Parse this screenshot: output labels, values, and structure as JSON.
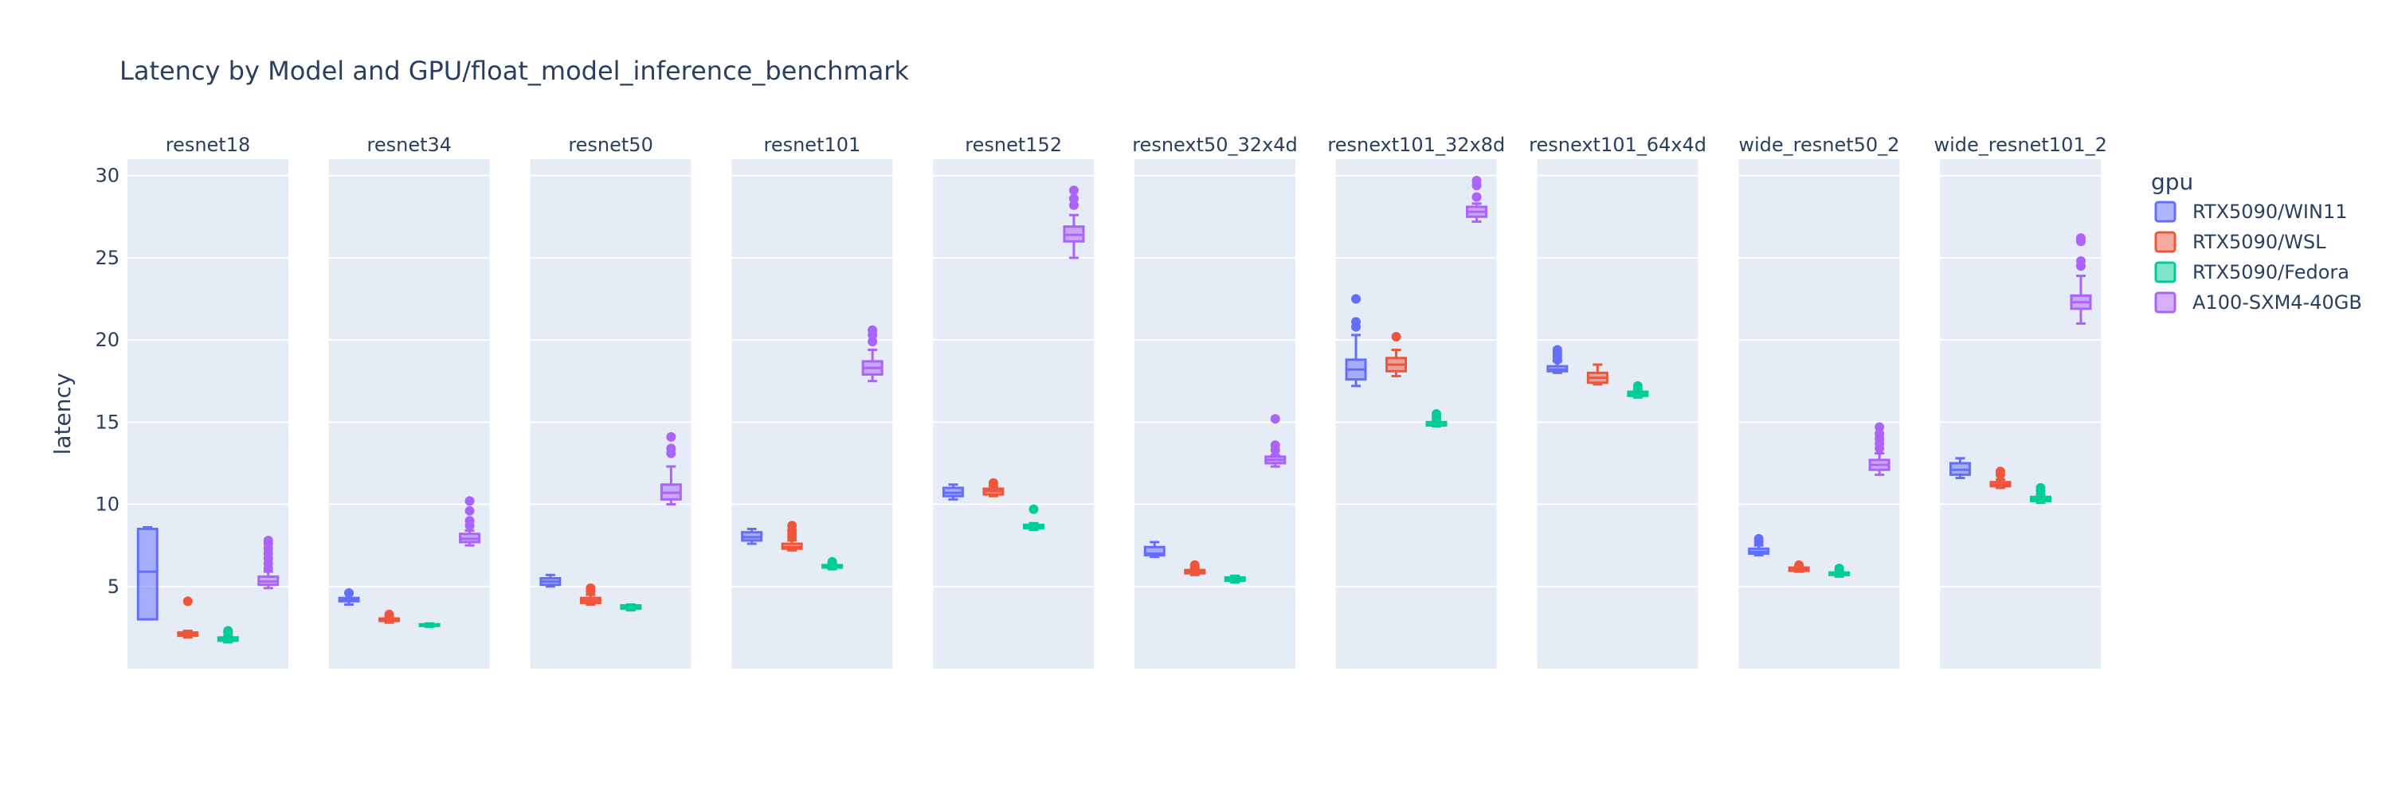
{
  "chart_data": {
    "type": "box",
    "title": "Latency by Model and GPU/float_model_inference_benchmark",
    "ylabel": "latency",
    "ylim": [
      0,
      31
    ],
    "yticks": [
      5,
      10,
      15,
      20,
      25,
      30
    ],
    "grid": true,
    "legend": {
      "title": "gpu",
      "position": "right"
    },
    "categories": [
      "resnet18",
      "resnet34",
      "resnet50",
      "resnet101",
      "resnet152",
      "resnext50_32x4d",
      "resnext101_32x8d",
      "resnext101_64x4d",
      "wide_resnet50_2",
      "wide_resnet101_2"
    ],
    "series": [
      {
        "name": "RTX5090/WIN11",
        "color": "#636efa",
        "boxes": [
          {
            "q1": 3.0,
            "median": 5.9,
            "q3": 8.5,
            "lower": 3.0,
            "upper": 8.6,
            "outliers": []
          },
          {
            "q1": 4.1,
            "median": 4.2,
            "q3": 4.3,
            "lower": 3.9,
            "upper": 4.6,
            "outliers": [
              4.6
            ]
          },
          {
            "q1": 5.1,
            "median": 5.3,
            "q3": 5.5,
            "lower": 5.0,
            "upper": 5.7,
            "outliers": []
          },
          {
            "q1": 7.8,
            "median": 8.0,
            "q3": 8.3,
            "lower": 7.6,
            "upper": 8.5,
            "outliers": []
          },
          {
            "q1": 10.5,
            "median": 10.7,
            "q3": 11.0,
            "lower": 10.3,
            "upper": 11.2,
            "outliers": []
          },
          {
            "q1": 6.9,
            "median": 7.0,
            "q3": 7.4,
            "lower": 6.8,
            "upper": 7.7,
            "outliers": []
          },
          {
            "q1": 17.6,
            "median": 18.2,
            "q3": 18.8,
            "lower": 17.2,
            "upper": 20.3,
            "outliers": [
              20.8,
              21.1,
              22.5
            ]
          },
          {
            "q1": 18.1,
            "median": 18.2,
            "q3": 18.4,
            "lower": 18.0,
            "upper": 18.7,
            "outliers": [
              18.8,
              19.0,
              19.2,
              19.4
            ]
          },
          {
            "q1": 7.0,
            "median": 7.1,
            "q3": 7.3,
            "lower": 6.9,
            "upper": 7.5,
            "outliers": [
              7.7,
              7.9
            ]
          },
          {
            "q1": 11.8,
            "median": 12.1,
            "q3": 12.5,
            "lower": 11.6,
            "upper": 12.8,
            "outliers": []
          }
        ]
      },
      {
        "name": "RTX5090/WSL",
        "color": "#ef553b",
        "boxes": [
          {
            "q1": 2.0,
            "median": 2.1,
            "q3": 2.2,
            "lower": 1.9,
            "upper": 2.3,
            "outliers": [
              4.1
            ]
          },
          {
            "q1": 2.9,
            "median": 3.0,
            "q3": 3.05,
            "lower": 2.8,
            "upper": 3.2,
            "outliers": [
              3.3
            ]
          },
          {
            "q1": 4.0,
            "median": 4.15,
            "q3": 4.3,
            "lower": 3.9,
            "upper": 4.5,
            "outliers": [
              4.7,
              4.9
            ]
          },
          {
            "q1": 7.3,
            "median": 7.4,
            "q3": 7.6,
            "lower": 7.2,
            "upper": 7.8,
            "outliers": [
              8.0,
              8.2,
              8.4,
              8.7
            ]
          },
          {
            "q1": 10.6,
            "median": 10.8,
            "q3": 10.95,
            "lower": 10.5,
            "upper": 11.1,
            "outliers": [
              11.3
            ]
          },
          {
            "q1": 5.8,
            "median": 5.9,
            "q3": 6.0,
            "lower": 5.7,
            "upper": 6.1,
            "outliers": [
              6.2,
              6.3
            ]
          },
          {
            "q1": 18.1,
            "median": 18.5,
            "q3": 18.9,
            "lower": 17.8,
            "upper": 19.4,
            "outliers": [
              20.2
            ]
          },
          {
            "q1": 17.4,
            "median": 17.7,
            "q3": 18.0,
            "lower": 17.3,
            "upper": 18.5,
            "outliers": []
          },
          {
            "q1": 5.95,
            "median": 6.05,
            "q3": 6.15,
            "lower": 5.9,
            "upper": 6.2,
            "outliers": [
              6.3
            ]
          },
          {
            "q1": 11.1,
            "median": 11.2,
            "q3": 11.35,
            "lower": 11.0,
            "upper": 11.5,
            "outliers": [
              11.8,
              12.0
            ]
          }
        ]
      },
      {
        "name": "RTX5090/Fedora",
        "color": "#00cc96",
        "boxes": [
          {
            "q1": 1.7,
            "median": 1.8,
            "q3": 1.9,
            "lower": 1.6,
            "upper": 2.0,
            "outliers": [
              2.2,
              2.3
            ]
          },
          {
            "q1": 2.6,
            "median": 2.65,
            "q3": 2.7,
            "lower": 2.55,
            "upper": 2.75,
            "outliers": []
          },
          {
            "q1": 3.65,
            "median": 3.75,
            "q3": 3.85,
            "lower": 3.55,
            "upper": 3.9,
            "outliers": []
          },
          {
            "q1": 6.15,
            "median": 6.2,
            "q3": 6.3,
            "lower": 6.05,
            "upper": 6.4,
            "outliers": [
              6.5
            ]
          },
          {
            "q1": 8.55,
            "median": 8.65,
            "q3": 8.75,
            "lower": 8.45,
            "upper": 8.85,
            "outliers": [
              9.7
            ]
          },
          {
            "q1": 5.35,
            "median": 5.45,
            "q3": 5.55,
            "lower": 5.25,
            "upper": 5.65,
            "outliers": []
          },
          {
            "q1": 14.8,
            "median": 14.9,
            "q3": 15.0,
            "lower": 14.75,
            "upper": 15.1,
            "outliers": [
              15.3,
              15.5
            ]
          },
          {
            "q1": 16.6,
            "median": 16.7,
            "q3": 16.85,
            "lower": 16.5,
            "upper": 17.0,
            "outliers": [
              17.2
            ]
          },
          {
            "q1": 5.7,
            "median": 5.75,
            "q3": 5.85,
            "lower": 5.6,
            "upper": 5.95,
            "outliers": [
              6.1
            ]
          },
          {
            "q1": 10.2,
            "median": 10.3,
            "q3": 10.45,
            "lower": 10.1,
            "upper": 10.6,
            "outliers": [
              10.8,
              11.0
            ]
          }
        ]
      },
      {
        "name": "A100-SXM4-40GB",
        "color": "#ab63fa",
        "boxes": [
          {
            "q1": 5.1,
            "median": 5.3,
            "q3": 5.6,
            "lower": 4.9,
            "upper": 5.9,
            "outliers": [
              6.1,
              6.4,
              6.7,
              7.0,
              7.3,
              7.6,
              7.8
            ]
          },
          {
            "q1": 7.7,
            "median": 7.9,
            "q3": 8.2,
            "lower": 7.5,
            "upper": 8.4,
            "outliers": [
              8.7,
              9.0,
              9.6,
              10.2
            ]
          },
          {
            "q1": 10.3,
            "median": 10.7,
            "q3": 11.2,
            "lower": 10.0,
            "upper": 12.3,
            "outliers": [
              13.1,
              13.4,
              14.1
            ]
          },
          {
            "q1": 17.9,
            "median": 18.3,
            "q3": 18.7,
            "lower": 17.5,
            "upper": 19.4,
            "outliers": [
              19.9,
              20.3,
              20.6
            ]
          },
          {
            "q1": 26.0,
            "median": 26.4,
            "q3": 26.9,
            "lower": 25.0,
            "upper": 27.6,
            "outliers": [
              28.2,
              28.6,
              29.1
            ]
          },
          {
            "q1": 12.5,
            "median": 12.7,
            "q3": 12.9,
            "lower": 12.3,
            "upper": 13.0,
            "outliers": [
              13.3,
              13.6,
              15.2
            ]
          },
          {
            "q1": 27.5,
            "median": 27.8,
            "q3": 28.1,
            "lower": 27.2,
            "upper": 28.3,
            "outliers": [
              28.7,
              29.4,
              29.7
            ]
          },
          {
            "q1": null,
            "median": null,
            "q3": null,
            "lower": null,
            "upper": null,
            "outliers": []
          },
          {
            "q1": 12.1,
            "median": 12.4,
            "q3": 12.7,
            "lower": 11.8,
            "upper": 13.1,
            "outliers": [
              13.4,
              13.7,
              14.0,
              14.3,
              14.7
            ]
          },
          {
            "q1": 21.9,
            "median": 22.3,
            "q3": 22.7,
            "lower": 21.0,
            "upper": 23.9,
            "outliers": [
              24.5,
              24.8,
              26.0,
              26.2
            ]
          }
        ]
      }
    ]
  }
}
